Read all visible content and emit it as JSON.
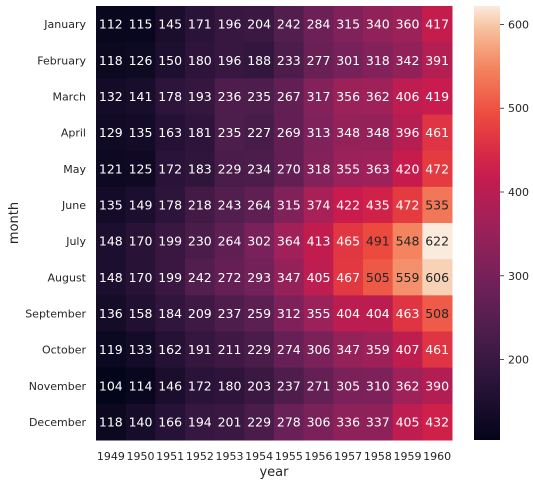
{
  "chart_data": {
    "type": "heatmap",
    "title": "",
    "xlabel": "year",
    "ylabel": "month",
    "x": [
      "1949",
      "1950",
      "1951",
      "1952",
      "1953",
      "1954",
      "1955",
      "1956",
      "1957",
      "1958",
      "1959",
      "1960"
    ],
    "y": [
      "January",
      "February",
      "March",
      "April",
      "May",
      "June",
      "July",
      "August",
      "September",
      "October",
      "November",
      "December"
    ],
    "values": [
      [
        112,
        115,
        145,
        171,
        196,
        204,
        242,
        284,
        315,
        340,
        360,
        417
      ],
      [
        118,
        126,
        150,
        180,
        196,
        188,
        233,
        277,
        301,
        318,
        342,
        391
      ],
      [
        132,
        141,
        178,
        193,
        236,
        235,
        267,
        317,
        356,
        362,
        406,
        419
      ],
      [
        129,
        135,
        163,
        181,
        235,
        227,
        269,
        313,
        348,
        348,
        396,
        461
      ],
      [
        121,
        125,
        172,
        183,
        229,
        234,
        270,
        318,
        355,
        363,
        420,
        472
      ],
      [
        135,
        149,
        178,
        218,
        243,
        264,
        315,
        374,
        422,
        435,
        472,
        535
      ],
      [
        148,
        170,
        199,
        230,
        264,
        302,
        364,
        413,
        465,
        491,
        548,
        622
      ],
      [
        148,
        170,
        199,
        242,
        272,
        293,
        347,
        405,
        467,
        505,
        559,
        606
      ],
      [
        136,
        158,
        184,
        209,
        237,
        259,
        312,
        355,
        404,
        404,
        463,
        508
      ],
      [
        119,
        133,
        162,
        191,
        211,
        229,
        274,
        306,
        347,
        359,
        407,
        461
      ],
      [
        104,
        114,
        146,
        172,
        180,
        203,
        237,
        271,
        305,
        310,
        362,
        390
      ],
      [
        118,
        140,
        166,
        194,
        201,
        229,
        278,
        306,
        336,
        337,
        405,
        432
      ]
    ],
    "colorbar": {
      "min": 104,
      "max": 622,
      "ticks": [
        "200",
        "300",
        "400",
        "500",
        "600"
      ]
    },
    "colormap": "rocket",
    "annotated": true,
    "legend": "colorbar-right"
  }
}
